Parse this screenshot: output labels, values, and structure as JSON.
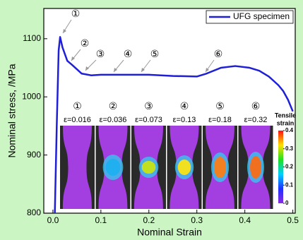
{
  "chart_data": {
    "type": "line",
    "xlabel": "Nominal Strain",
    "ylabel": "Nominal stress, /MPa",
    "xlim": [
      -0.019,
      0.505
    ],
    "ylim": [
      800,
      1152
    ],
    "xticks": [
      {
        "value": 0,
        "label": "0.0"
      },
      0.1,
      0.2,
      0.3,
      0.4,
      0.5
    ],
    "yticks": [
      800,
      900,
      1000,
      1100
    ],
    "legend": "upper right",
    "series": [
      {
        "name": "UFG specimen",
        "color": "#1f1fd6",
        "x": [
          0.004,
          0.008,
          0.012,
          0.015,
          0.02,
          0.03,
          0.04,
          0.06,
          0.08,
          0.1,
          0.15,
          0.2,
          0.25,
          0.3,
          0.32,
          0.35,
          0.38,
          0.41,
          0.43,
          0.45,
          0.47,
          0.48,
          0.49,
          0.5
        ],
        "values": [
          800,
          950,
          1080,
          1103,
          1085,
          1062,
          1055,
          1040,
          1037,
          1038,
          1038,
          1038,
          1036,
          1035,
          1040,
          1050,
          1053,
          1050,
          1045,
          1035,
          1020,
          1010,
          995,
          975
        ]
      }
    ],
    "annotations": [
      "①",
      "②",
      "③",
      "④",
      "⑤",
      "⑥"
    ],
    "insets": [
      {
        "marker": "①",
        "label": "ε=0.016"
      },
      {
        "marker": "②",
        "label": "ε=0.036"
      },
      {
        "marker": "③",
        "label": "ε=0.073"
      },
      {
        "marker": "④",
        "label": "ε=0.13"
      },
      {
        "marker": "⑤",
        "label": "ε=0.18"
      },
      {
        "marker": "⑥",
        "label": "ε=0.32"
      }
    ],
    "colorbar": {
      "label": [
        "Tensile",
        "strain"
      ],
      "ticks": [
        0,
        0.1,
        0.2,
        0.3,
        0.4
      ]
    }
  }
}
